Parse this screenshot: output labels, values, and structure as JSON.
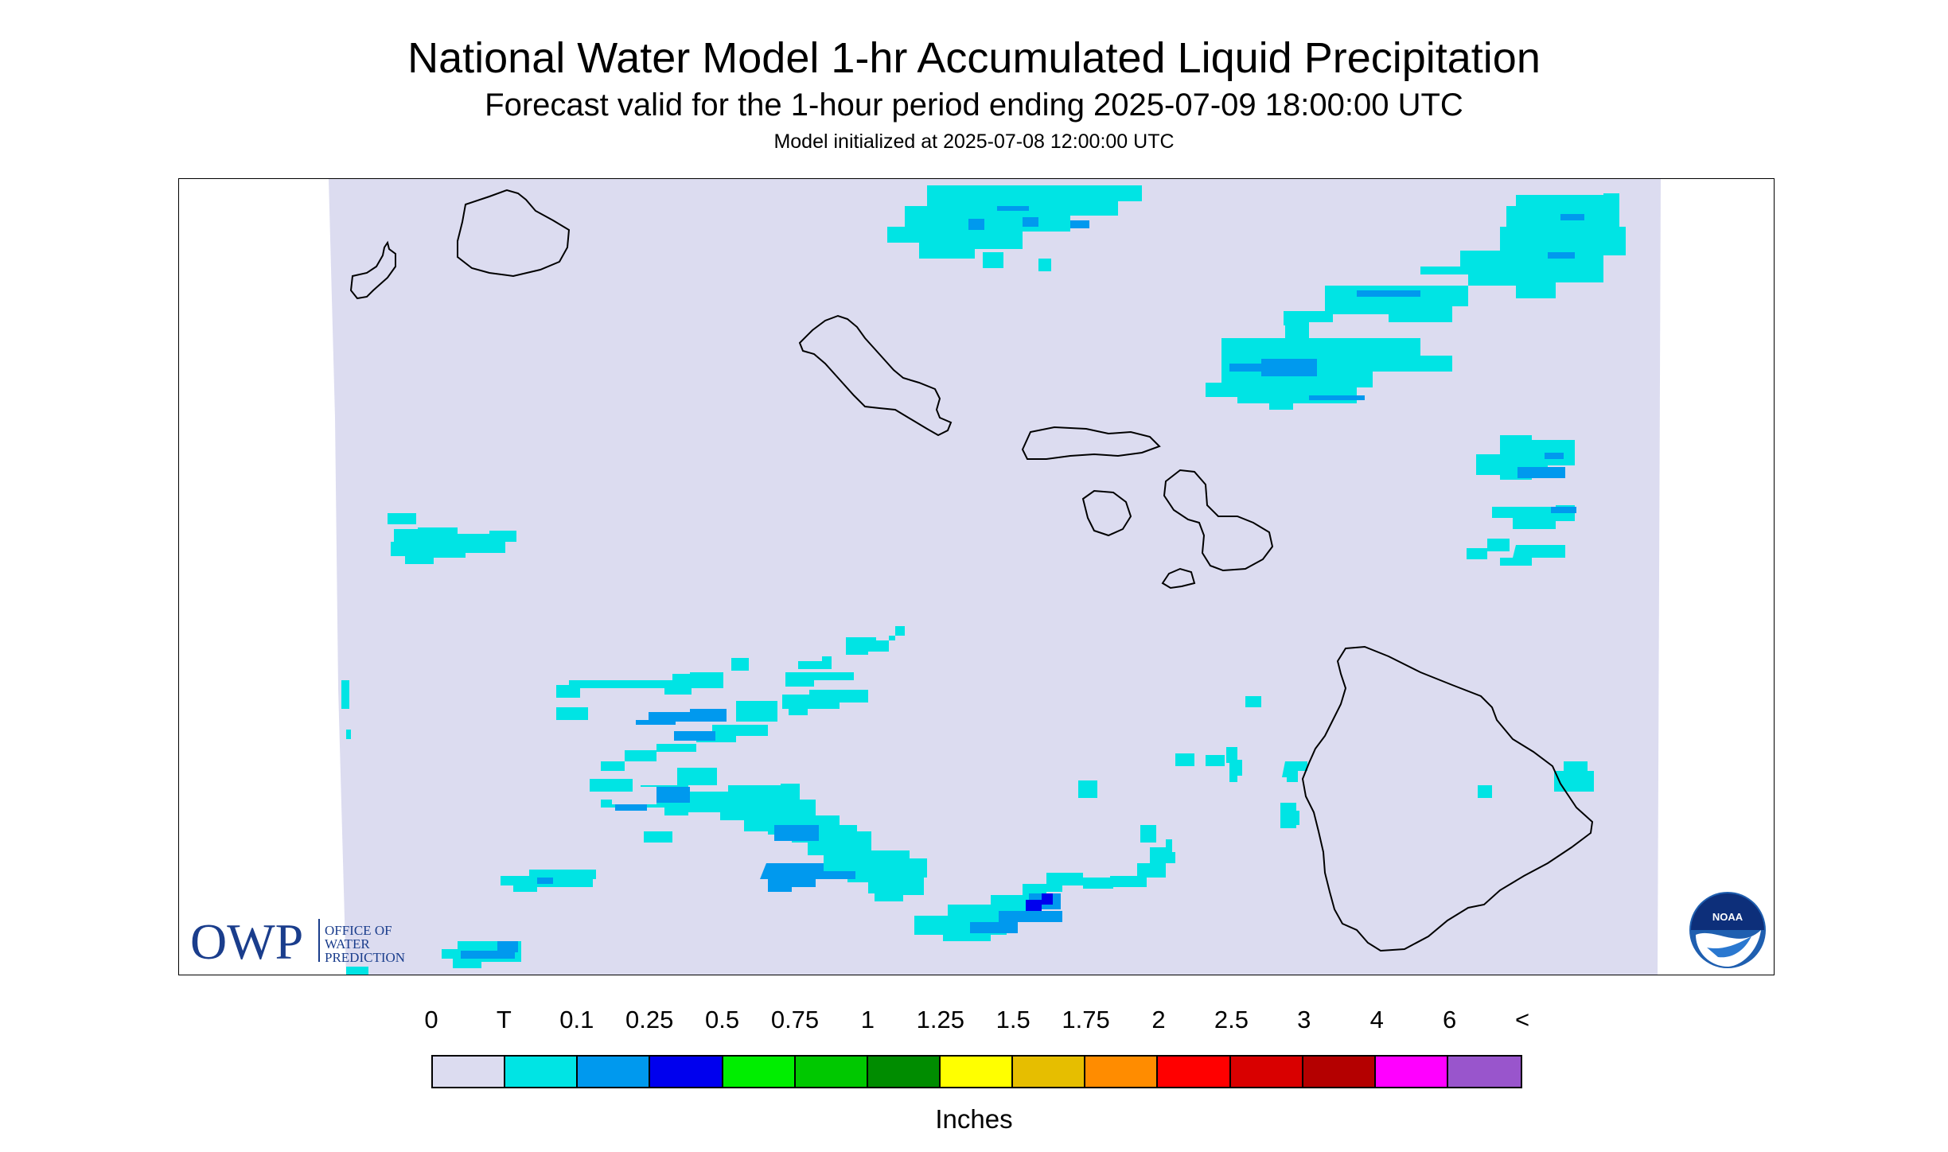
{
  "header": {
    "title": "National Water Model 1-hr Accumulated Liquid Precipitation",
    "subtitle": "Forecast valid for the 1-hour period ending 2025-07-09 18:00:00 UTC",
    "init_line": "Model initialized at 2025-07-08 12:00:00 UTC"
  },
  "branding": {
    "owp_abbrev": "OWP",
    "owp_line1": "OFFICE OF",
    "owp_line2": "WATER",
    "owp_line3": "PREDICTION",
    "noaa_text": "NOAA"
  },
  "legend": {
    "labels": [
      "0",
      "T",
      "0.1",
      "0.25",
      "0.5",
      "0.75",
      "1",
      "1.25",
      "1.5",
      "1.75",
      "2",
      "2.5",
      "3",
      "4",
      "6",
      "<"
    ],
    "colors": [
      "#dcdcf0",
      "#00e4e4",
      "#0099ee",
      "#0000ee",
      "#00ee00",
      "#00c800",
      "#008c00",
      "#ffff00",
      "#e6be00",
      "#ff8c00",
      "#ff0000",
      "#d90000",
      "#b40000",
      "#ff00ff",
      "#9955cc"
    ],
    "units": "Inches"
  },
  "map_colors": {
    "background": "#dcdcf0",
    "trace": "#00e4e4",
    "light": "#0099ee",
    "moderate": "#0000ee",
    "coast": "#000000"
  }
}
